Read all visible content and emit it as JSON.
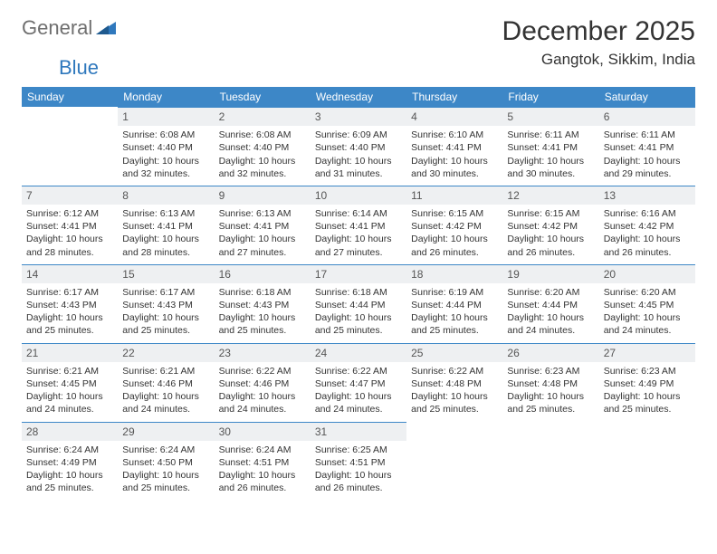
{
  "logo": {
    "part1": "General",
    "part2": "Blue"
  },
  "title": "December 2025",
  "location": "Gangtok, Sikkim, India",
  "day_headers": [
    "Sunday",
    "Monday",
    "Tuesday",
    "Wednesday",
    "Thursday",
    "Friday",
    "Saturday"
  ],
  "colors": {
    "header_bg": "#3d87c7",
    "header_text": "#ffffff",
    "daynum_bg": "#eef0f2",
    "daynum_border": "#3d87c7",
    "logo_gray": "#6f6f6f",
    "logo_blue": "#2f78bd"
  },
  "weeks": [
    [
      {
        "n": "",
        "sunrise": "",
        "sunset": "",
        "daylight": "",
        "empty": true
      },
      {
        "n": "1",
        "sunrise": "Sunrise: 6:08 AM",
        "sunset": "Sunset: 4:40 PM",
        "daylight": "Daylight: 10 hours and 32 minutes."
      },
      {
        "n": "2",
        "sunrise": "Sunrise: 6:08 AM",
        "sunset": "Sunset: 4:40 PM",
        "daylight": "Daylight: 10 hours and 32 minutes."
      },
      {
        "n": "3",
        "sunrise": "Sunrise: 6:09 AM",
        "sunset": "Sunset: 4:40 PM",
        "daylight": "Daylight: 10 hours and 31 minutes."
      },
      {
        "n": "4",
        "sunrise": "Sunrise: 6:10 AM",
        "sunset": "Sunset: 4:41 PM",
        "daylight": "Daylight: 10 hours and 30 minutes."
      },
      {
        "n": "5",
        "sunrise": "Sunrise: 6:11 AM",
        "sunset": "Sunset: 4:41 PM",
        "daylight": "Daylight: 10 hours and 30 minutes."
      },
      {
        "n": "6",
        "sunrise": "Sunrise: 6:11 AM",
        "sunset": "Sunset: 4:41 PM",
        "daylight": "Daylight: 10 hours and 29 minutes."
      }
    ],
    [
      {
        "n": "7",
        "sunrise": "Sunrise: 6:12 AM",
        "sunset": "Sunset: 4:41 PM",
        "daylight": "Daylight: 10 hours and 28 minutes."
      },
      {
        "n": "8",
        "sunrise": "Sunrise: 6:13 AM",
        "sunset": "Sunset: 4:41 PM",
        "daylight": "Daylight: 10 hours and 28 minutes."
      },
      {
        "n": "9",
        "sunrise": "Sunrise: 6:13 AM",
        "sunset": "Sunset: 4:41 PM",
        "daylight": "Daylight: 10 hours and 27 minutes."
      },
      {
        "n": "10",
        "sunrise": "Sunrise: 6:14 AM",
        "sunset": "Sunset: 4:41 PM",
        "daylight": "Daylight: 10 hours and 27 minutes."
      },
      {
        "n": "11",
        "sunrise": "Sunrise: 6:15 AM",
        "sunset": "Sunset: 4:42 PM",
        "daylight": "Daylight: 10 hours and 26 minutes."
      },
      {
        "n": "12",
        "sunrise": "Sunrise: 6:15 AM",
        "sunset": "Sunset: 4:42 PM",
        "daylight": "Daylight: 10 hours and 26 minutes."
      },
      {
        "n": "13",
        "sunrise": "Sunrise: 6:16 AM",
        "sunset": "Sunset: 4:42 PM",
        "daylight": "Daylight: 10 hours and 26 minutes."
      }
    ],
    [
      {
        "n": "14",
        "sunrise": "Sunrise: 6:17 AM",
        "sunset": "Sunset: 4:43 PM",
        "daylight": "Daylight: 10 hours and 25 minutes."
      },
      {
        "n": "15",
        "sunrise": "Sunrise: 6:17 AM",
        "sunset": "Sunset: 4:43 PM",
        "daylight": "Daylight: 10 hours and 25 minutes."
      },
      {
        "n": "16",
        "sunrise": "Sunrise: 6:18 AM",
        "sunset": "Sunset: 4:43 PM",
        "daylight": "Daylight: 10 hours and 25 minutes."
      },
      {
        "n": "17",
        "sunrise": "Sunrise: 6:18 AM",
        "sunset": "Sunset: 4:44 PM",
        "daylight": "Daylight: 10 hours and 25 minutes."
      },
      {
        "n": "18",
        "sunrise": "Sunrise: 6:19 AM",
        "sunset": "Sunset: 4:44 PM",
        "daylight": "Daylight: 10 hours and 25 minutes."
      },
      {
        "n": "19",
        "sunrise": "Sunrise: 6:20 AM",
        "sunset": "Sunset: 4:44 PM",
        "daylight": "Daylight: 10 hours and 24 minutes."
      },
      {
        "n": "20",
        "sunrise": "Sunrise: 6:20 AM",
        "sunset": "Sunset: 4:45 PM",
        "daylight": "Daylight: 10 hours and 24 minutes."
      }
    ],
    [
      {
        "n": "21",
        "sunrise": "Sunrise: 6:21 AM",
        "sunset": "Sunset: 4:45 PM",
        "daylight": "Daylight: 10 hours and 24 minutes."
      },
      {
        "n": "22",
        "sunrise": "Sunrise: 6:21 AM",
        "sunset": "Sunset: 4:46 PM",
        "daylight": "Daylight: 10 hours and 24 minutes."
      },
      {
        "n": "23",
        "sunrise": "Sunrise: 6:22 AM",
        "sunset": "Sunset: 4:46 PM",
        "daylight": "Daylight: 10 hours and 24 minutes."
      },
      {
        "n": "24",
        "sunrise": "Sunrise: 6:22 AM",
        "sunset": "Sunset: 4:47 PM",
        "daylight": "Daylight: 10 hours and 24 minutes."
      },
      {
        "n": "25",
        "sunrise": "Sunrise: 6:22 AM",
        "sunset": "Sunset: 4:48 PM",
        "daylight": "Daylight: 10 hours and 25 minutes."
      },
      {
        "n": "26",
        "sunrise": "Sunrise: 6:23 AM",
        "sunset": "Sunset: 4:48 PM",
        "daylight": "Daylight: 10 hours and 25 minutes."
      },
      {
        "n": "27",
        "sunrise": "Sunrise: 6:23 AM",
        "sunset": "Sunset: 4:49 PM",
        "daylight": "Daylight: 10 hours and 25 minutes."
      }
    ],
    [
      {
        "n": "28",
        "sunrise": "Sunrise: 6:24 AM",
        "sunset": "Sunset: 4:49 PM",
        "daylight": "Daylight: 10 hours and 25 minutes."
      },
      {
        "n": "29",
        "sunrise": "Sunrise: 6:24 AM",
        "sunset": "Sunset: 4:50 PM",
        "daylight": "Daylight: 10 hours and 25 minutes."
      },
      {
        "n": "30",
        "sunrise": "Sunrise: 6:24 AM",
        "sunset": "Sunset: 4:51 PM",
        "daylight": "Daylight: 10 hours and 26 minutes."
      },
      {
        "n": "31",
        "sunrise": "Sunrise: 6:25 AM",
        "sunset": "Sunset: 4:51 PM",
        "daylight": "Daylight: 10 hours and 26 minutes."
      },
      {
        "n": "",
        "sunrise": "",
        "sunset": "",
        "daylight": "",
        "empty": true
      },
      {
        "n": "",
        "sunrise": "",
        "sunset": "",
        "daylight": "",
        "empty": true
      },
      {
        "n": "",
        "sunrise": "",
        "sunset": "",
        "daylight": "",
        "empty": true
      }
    ]
  ]
}
